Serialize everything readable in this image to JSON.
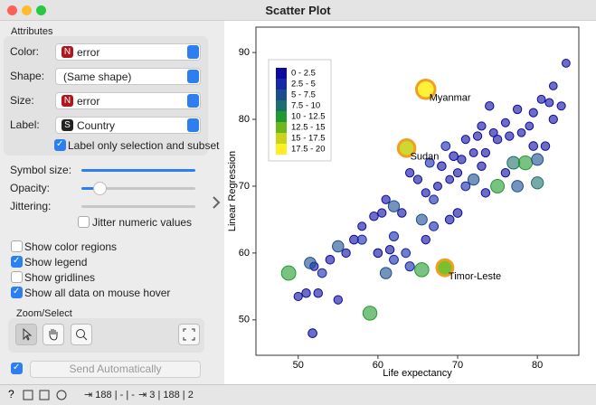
{
  "window": {
    "title": "Scatter Plot"
  },
  "attributes": {
    "title": "Attributes",
    "rows": [
      {
        "label": "Color:",
        "badge": "N",
        "value": "error"
      },
      {
        "label": "Shape:",
        "badge": null,
        "value": "(Same shape)"
      },
      {
        "label": "Size:",
        "badge": "N",
        "value": "error"
      },
      {
        "label": "Label:",
        "badge": "S",
        "value": "Country"
      }
    ],
    "label_only": {
      "text": "Label only selection and subset",
      "checked": true
    }
  },
  "sliders": [
    {
      "label": "Symbol size:"
    },
    {
      "label": "Opacity:"
    },
    {
      "label": "Jittering:"
    }
  ],
  "jitter_numeric": {
    "text": "Jitter numeric values",
    "checked": false
  },
  "options": [
    {
      "text": "Show color regions",
      "checked": false
    },
    {
      "text": "Show legend",
      "checked": true
    },
    {
      "text": "Show gridlines",
      "checked": false
    },
    {
      "text": "Show all data on mouse hover",
      "checked": true
    }
  ],
  "zoom": {
    "title": "Zoom/Select"
  },
  "send": {
    "text": "Send Automatically",
    "checked": true
  },
  "status": {
    "input": "188 | - | -",
    "output": "3 | 188 | 2"
  },
  "chart_data": {
    "type": "scatter",
    "xlabel": "Life expectancy",
    "ylabel": "Linear Regression",
    "xlim": [
      44.7,
      85.2
    ],
    "ylim": [
      44.7,
      93.8
    ],
    "xticks": [
      50,
      60,
      70,
      80
    ],
    "yticks": [
      50,
      60,
      70,
      80,
      90
    ],
    "grid": false,
    "legend": {
      "position": "upper left",
      "labels": [
        "0 - 2.5",
        "2.5 - 5",
        "5 - 7.5",
        "7.5 - 10",
        "10 - 12.5",
        "12.5 - 15",
        "15 - 17.5",
        "17.5 - 20"
      ],
      "colors": [
        "#0b0ba0",
        "#1428a8",
        "#1a4c8e",
        "#1c6f6c",
        "#1f9a2e",
        "#6cb81a",
        "#cad31a",
        "#ffee22"
      ],
      "bins": [
        0,
        2.5,
        5,
        7.5,
        10,
        12.5,
        15,
        17.5,
        20
      ]
    },
    "x": [
      83.6,
      81.5,
      82,
      80.5,
      79.5,
      79,
      77.5,
      76,
      78,
      75,
      74.5,
      73.5,
      73,
      72,
      71,
      70.5,
      70,
      69,
      68,
      67.5,
      67,
      66,
      65,
      64,
      65.5,
      63,
      62,
      61,
      60.5,
      59.5,
      58,
      57,
      56,
      55,
      54,
      53,
      52,
      51.5,
      51,
      50,
      52.5,
      51.8,
      55,
      58,
      60,
      61.5,
      62,
      63.5,
      64,
      66,
      67,
      69,
      70,
      71,
      72,
      73.5,
      75,
      76,
      77,
      78.5,
      80,
      81,
      79.5,
      82,
      83,
      74,
      73,
      76.5,
      72.5,
      69.5,
      68.5,
      66.5,
      62,
      61,
      65.5,
      48.8,
      59,
      77.5,
      80,
      66,
      63.6,
      68.4
    ],
    "y": [
      88.4,
      82.5,
      85,
      83,
      81,
      79,
      81.5,
      79.5,
      78,
      77,
      78,
      75,
      73,
      75,
      77,
      74,
      72,
      71,
      73,
      70,
      68,
      69,
      71,
      72,
      65,
      66,
      67,
      68,
      66,
      65.5,
      64,
      62,
      60,
      61,
      59,
      57,
      58,
      58.5,
      54,
      53.5,
      54,
      48,
      53,
      62,
      60,
      60.5,
      59,
      60,
      58,
      62,
      64,
      65,
      66,
      70,
      71,
      69,
      70,
      72,
      73.5,
      73.5,
      74,
      76,
      76,
      80,
      82,
      82,
      79,
      77.5,
      77.5,
      74.5,
      76,
      73.5,
      62.5,
      57,
      57.5,
      57,
      51,
      70,
      70.5,
      84.5,
      75.7,
      57.8
    ],
    "size": [
      1.2,
      1.5,
      1,
      1.3,
      1.8,
      1.2,
      2,
      1.5,
      1.1,
      2.2,
      1.4,
      1.9,
      2.1,
      1.3,
      1.6,
      2,
      1.8,
      1.2,
      2.4,
      1.5,
      2.6,
      1.7,
      1.9,
      2,
      6,
      2.2,
      6.5,
      1.8,
      2,
      2.3,
      1.6,
      2.5,
      2.1,
      6.8,
      2.4,
      2.6,
      1.9,
      7,
      2.2,
      1.8,
      2.3,
      2.5,
      2.1,
      3,
      2.4,
      2.2,
      2.8,
      2.6,
      3.1,
      2.2,
      2.9,
      2.4,
      2.5,
      2.7,
      6.5,
      2.2,
      10.5,
      2.1,
      9,
      11,
      7.5,
      2.3,
      2.4,
      1.9,
      1.6,
      2.2,
      1.8,
      2.1,
      2,
      2.5,
      2.6,
      2.8,
      3.2,
      6.8,
      11.5,
      11.8,
      11.2,
      7,
      8,
      19,
      16,
      15
    ],
    "labels": [
      null,
      null,
      null,
      null,
      null,
      null,
      null,
      null,
      null,
      null,
      null,
      null,
      null,
      null,
      null,
      null,
      null,
      null,
      null,
      null,
      null,
      null,
      null,
      null,
      null,
      null,
      null,
      null,
      null,
      null,
      null,
      null,
      null,
      null,
      null,
      null,
      null,
      null,
      null,
      null,
      null,
      null,
      null,
      null,
      null,
      null,
      null,
      null,
      null,
      null,
      null,
      null,
      null,
      null,
      null,
      null,
      null,
      null,
      null,
      null,
      null,
      null,
      null,
      null,
      null,
      null,
      null,
      null,
      null,
      null,
      null,
      null,
      null,
      null,
      null,
      null,
      null,
      null,
      null,
      "Myanmar",
      "Sudan",
      "Timor-Leste"
    ]
  }
}
